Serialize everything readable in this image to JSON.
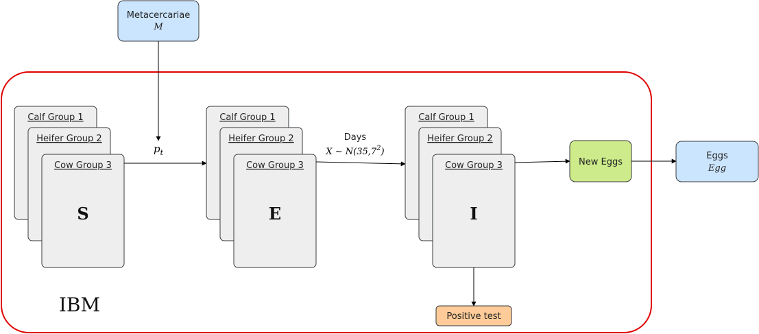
{
  "nodes": {
    "metacercariae": {
      "title": "Metacercariae",
      "symbol": "M",
      "color": "#cce5ff"
    },
    "new_eggs": {
      "title": "New Eggs",
      "color": "#cdeb8b"
    },
    "eggs": {
      "title": "Eggs",
      "symbol": "Egg",
      "color": "#cce5ff"
    },
    "positive_test": {
      "title": "Positive test",
      "color": "#ffcc99"
    }
  },
  "container": {
    "label": "IBM",
    "color": "#e00000"
  },
  "states": [
    {
      "letter": "S",
      "groups": [
        "Calf  Group 1",
        "Heifer Group 2",
        "Cow  Group 3"
      ]
    },
    {
      "letter": "E",
      "groups": [
        "Calf  Group 1",
        "Heifer Group 2",
        "Cow  Group 3"
      ]
    },
    {
      "letter": "I",
      "groups": [
        "Calf  Group 1",
        "Heifer Group 2",
        "Cow  Group 3"
      ]
    }
  ],
  "edges": {
    "s_to_e_label": "p",
    "s_to_e_subscript": "t",
    "e_to_i_label_line1": "Days",
    "e_to_i_label_line2": "X ∼ N(35,7",
    "e_to_i_superscript": "2",
    "e_to_i_close": ")"
  }
}
